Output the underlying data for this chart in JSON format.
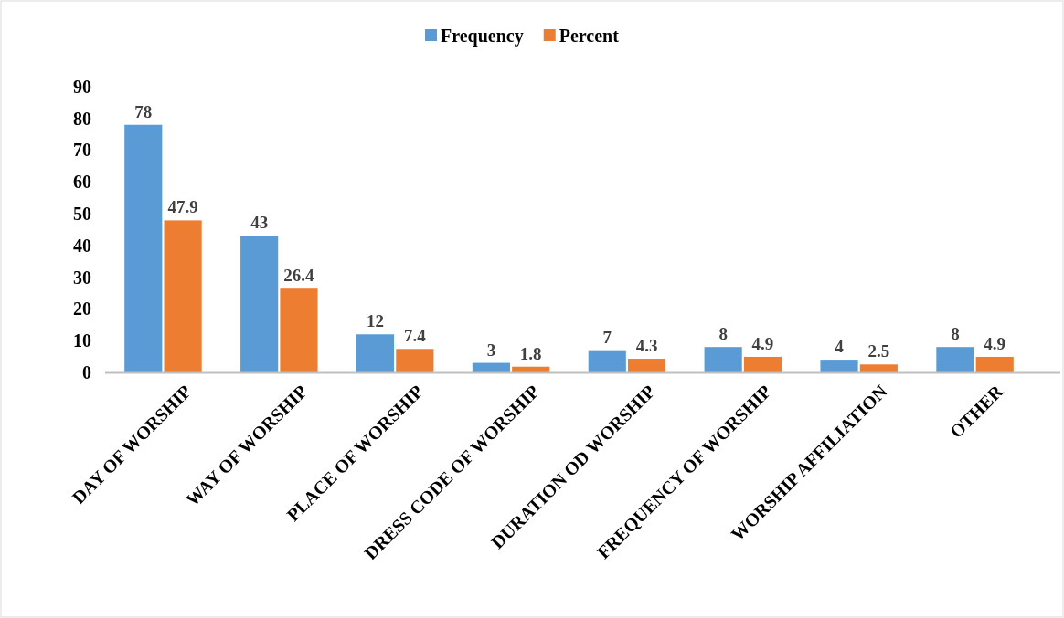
{
  "chart_data": {
    "type": "bar",
    "categories": [
      "DAY OF WORSHIP",
      "WAY OF WORSHIP",
      "PLACE OF WORSHIP",
      "DRESS CODE OF WORSHIP",
      "DURATION OD WORSHIP",
      "FREQUENCY OF WORSHIP",
      "WORSHIP AFFILIATION",
      "OTHER"
    ],
    "series": [
      {
        "name": "Frequency",
        "color": "#5b9bd5",
        "values": [
          78,
          43,
          12,
          3,
          7,
          8,
          4,
          8
        ]
      },
      {
        "name": "Percent",
        "color": "#ed7d31",
        "values": [
          47.9,
          26.4,
          7.4,
          1.8,
          4.3,
          4.9,
          2.5,
          4.9
        ]
      }
    ],
    "ylim": [
      0,
      90
    ],
    "yticks": [
      0,
      10,
      20,
      30,
      40,
      50,
      60,
      70,
      80,
      90
    ],
    "grid": false,
    "legend": "top",
    "data_labels": true
  }
}
